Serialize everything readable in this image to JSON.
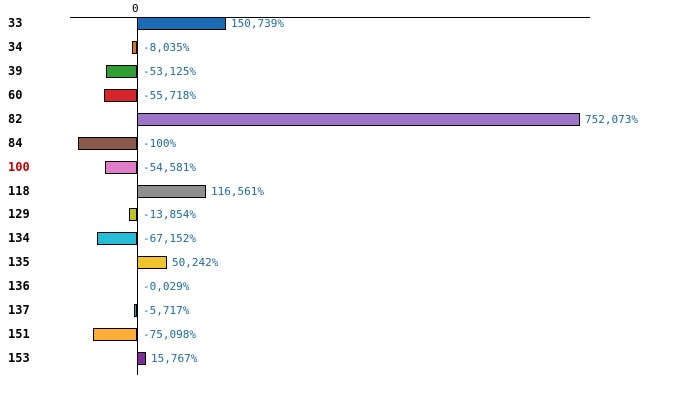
{
  "chart_data": {
    "type": "bar",
    "orientation": "horizontal",
    "title": "",
    "xlabel": "",
    "ylabel": "",
    "grid": false,
    "legend": "none",
    "axis_zero_label": "0",
    "xlim_pct": [
      -120,
      780
    ],
    "categories": [
      "33",
      "34",
      "39",
      "60",
      "82",
      "84",
      "100",
      "118",
      "129",
      "134",
      "135",
      "136",
      "137",
      "151",
      "153"
    ],
    "values": [
      150.739,
      -8.035,
      -53.125,
      -55.718,
      752.073,
      -100,
      -54.581,
      116.561,
      -13.854,
      -67.152,
      50.242,
      -0.029,
      -5.717,
      -75.098,
      15.767
    ],
    "value_labels": [
      "150,739%",
      "-8,035%",
      "-53,125%",
      "-55,718%",
      "752,073%",
      "-100%",
      "-54,581%",
      "116,561%",
      "-13,854%",
      "-67,152%",
      "50,242%",
      "-0,029%",
      "-5,717%",
      "-75,098%",
      "15,767%"
    ],
    "bar_colors": [
      "#1b6cb5",
      "#e2711d",
      "#2f9e33",
      "#d6252b",
      "#9d74c9",
      "#8a5a4c",
      "#e07cc8",
      "#8f8f8f",
      "#bcc21f",
      "#25bcd6",
      "#efc32a",
      "#cccccc",
      "#1ba8a2",
      "#ffaf37",
      "#7c2f96"
    ],
    "category_label_colors": [
      "#000000",
      "#000000",
      "#000000",
      "#000000",
      "#000000",
      "#000000",
      "#cc0000",
      "#000000",
      "#000000",
      "#000000",
      "#000000",
      "#000000",
      "#000000",
      "#000000",
      "#000000"
    ],
    "value_label_color": "#1e6a9e",
    "axis_color": "#000000",
    "background_color": "#ffffff"
  }
}
